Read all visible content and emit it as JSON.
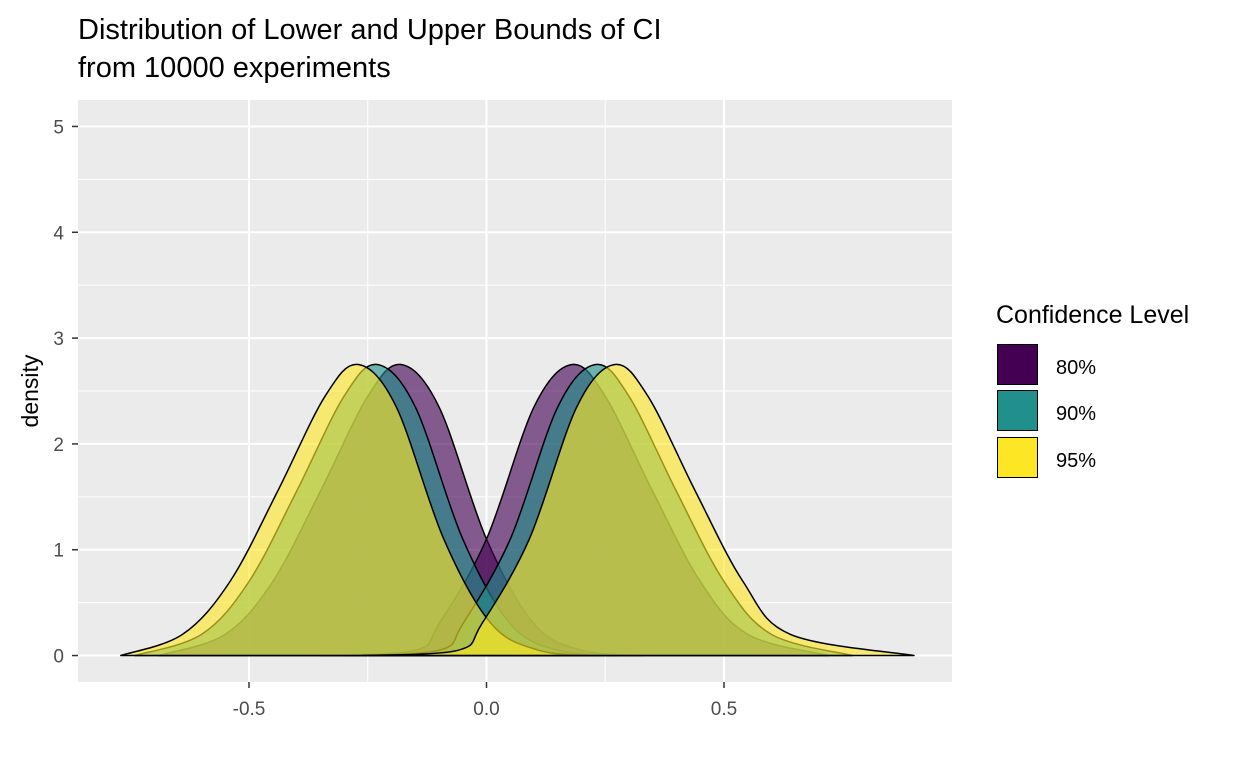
{
  "chart_data": {
    "type": "area",
    "title": "Distribution of Lower and Upper Bounds of CI",
    "subtitle": "from 10000 experiments",
    "xlabel": "",
    "ylabel": "density",
    "xlim": [
      -0.86,
      0.98
    ],
    "ylim": [
      -0.25,
      5.25
    ],
    "x_ticks": [
      -0.5,
      0.0,
      0.5
    ],
    "x_tick_labels": [
      "-0.5",
      "0.0",
      "0.5"
    ],
    "y_ticks": [
      0,
      1,
      2,
      3,
      4,
      5
    ],
    "y_tick_labels": [
      "0",
      "1",
      "2",
      "3",
      "4",
      "5"
    ],
    "grid": true,
    "legend": {
      "title": "Confidence Level",
      "position": "right"
    },
    "series": [
      {
        "name": "80%",
        "color": "#440154",
        "bounds": [
          {
            "bound": "lower",
            "x": [
              -0.69,
              -0.55,
              -0.45,
              -0.35,
              -0.25,
              -0.18,
              -0.1,
              0.0,
              0.1,
              0.2,
              0.33
            ],
            "y": [
              0.0,
              0.2,
              0.7,
              1.55,
              2.45,
              2.75,
              2.35,
              1.1,
              0.3,
              0.05,
              0.0
            ]
          },
          {
            "bound": "upper",
            "x": [
              -0.35,
              -0.15,
              -0.1,
              0.0,
              0.1,
              0.18,
              0.25,
              0.35,
              0.45,
              0.55,
              0.72
            ],
            "y": [
              0.0,
              0.05,
              0.3,
              1.1,
              2.35,
              2.75,
              2.45,
              1.55,
              0.7,
              0.2,
              0.0
            ]
          }
        ]
      },
      {
        "name": "90%",
        "color": "#21908C",
        "bounds": [
          {
            "bound": "lower",
            "x": [
              -0.74,
              -0.6,
              -0.5,
              -0.4,
              -0.3,
              -0.23,
              -0.15,
              -0.05,
              0.05,
              0.15,
              0.28
            ],
            "y": [
              0.0,
              0.2,
              0.7,
              1.55,
              2.45,
              2.75,
              2.35,
              1.1,
              0.3,
              0.05,
              0.0
            ]
          },
          {
            "bound": "upper",
            "x": [
              -0.3,
              -0.1,
              -0.05,
              0.05,
              0.15,
              0.23,
              0.3,
              0.4,
              0.5,
              0.6,
              0.77
            ],
            "y": [
              0.0,
              0.05,
              0.3,
              1.1,
              2.35,
              2.75,
              2.45,
              1.55,
              0.7,
              0.2,
              0.0
            ]
          }
        ]
      },
      {
        "name": "95%",
        "color": "#FDE725",
        "bounds": [
          {
            "bound": "lower",
            "x": [
              -0.77,
              -0.64,
              -0.54,
              -0.44,
              -0.34,
              -0.27,
              -0.19,
              -0.09,
              0.01,
              0.11,
              0.22
            ],
            "y": [
              0.0,
              0.2,
              0.7,
              1.55,
              2.45,
              2.75,
              2.35,
              1.1,
              0.3,
              0.05,
              0.0
            ]
          },
          {
            "bound": "upper",
            "x": [
              -0.26,
              -0.06,
              -0.01,
              0.09,
              0.19,
              0.27,
              0.34,
              0.44,
              0.54,
              0.64,
              0.9
            ],
            "y": [
              0.0,
              0.05,
              0.3,
              1.1,
              2.35,
              2.75,
              2.45,
              1.55,
              0.7,
              0.2,
              0.0
            ]
          }
        ]
      }
    ]
  }
}
